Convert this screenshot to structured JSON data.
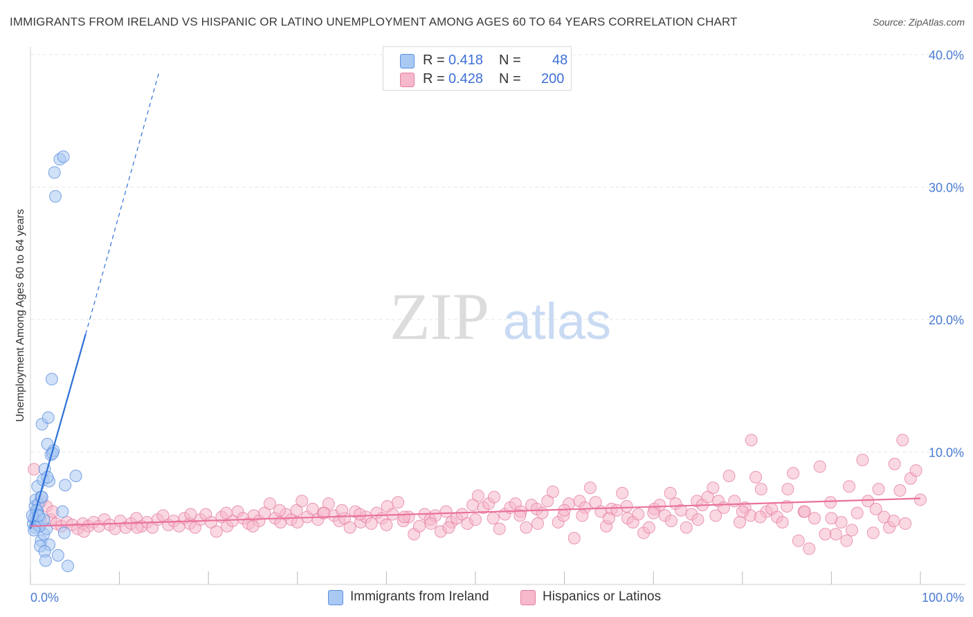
{
  "title": "IMMIGRANTS FROM IRELAND VS HISPANIC OR LATINO UNEMPLOYMENT AMONG AGES 60 TO 64 YEARS CORRELATION CHART",
  "source": "Source: ZipAtlas.com",
  "watermark": {
    "zip": "ZIP",
    "atlas": "atlas"
  },
  "colors": {
    "blue_fill": "#a9c8f2",
    "blue_stroke": "#5b8fe0",
    "blue_line": "#2c6fd6",
    "pink_fill": "#f6b8cb",
    "pink_stroke": "#e57fa3",
    "pink_line": "#e9719a",
    "tick_text": "#4a7bd4",
    "grid": "#e6e6e6"
  },
  "legend": {
    "rows": [
      {
        "r_label": "R =",
        "r_value": "0.418",
        "n_label": "N =",
        "n_value": "48",
        "series": "blue"
      },
      {
        "r_label": "R =",
        "r_value": "0.428",
        "n_label": "N =",
        "n_value": "200",
        "series": "pink"
      }
    ]
  },
  "chart_data": {
    "type": "scatter",
    "title": "IMMIGRANTS FROM IRELAND VS HISPANIC OR LATINO UNEMPLOYMENT AMONG AGES 60 TO 64 YEARS CORRELATION CHART",
    "xlabel": "",
    "ylabel": "Unemployment Among Ages 60 to 64 years",
    "xlim": [
      0,
      100
    ],
    "ylim": [
      0,
      40
    ],
    "x_tick_labels": [
      "0.0%",
      "100.0%"
    ],
    "y_ticks": [
      10,
      20,
      30,
      40
    ],
    "y_tick_labels": [
      "10.0%",
      "20.0%",
      "30.0%",
      "40.0%"
    ],
    "grid": true,
    "legend_position": "top-center",
    "series": [
      {
        "name": "Immigrants from Ireland",
        "color": "blue",
        "r": 0.418,
        "n": 48,
        "trend": {
          "x0": 0.0,
          "y0": 4.2,
          "x1": 6.2,
          "y1": 18.9,
          "dash_x1": 14.5,
          "dash_y1": 38.8
        },
        "points": [
          [
            0.3,
            4.6
          ],
          [
            0.4,
            5.0
          ],
          [
            0.5,
            4.3
          ],
          [
            0.6,
            5.3
          ],
          [
            0.7,
            4.8
          ],
          [
            0.8,
            5.5
          ],
          [
            0.9,
            4.5
          ],
          [
            1.0,
            5.1
          ],
          [
            0.5,
            5.9
          ],
          [
            0.6,
            6.4
          ],
          [
            0.8,
            7.4
          ],
          [
            0.9,
            6.1
          ],
          [
            1.2,
            6.6
          ],
          [
            1.4,
            7.9
          ],
          [
            1.6,
            8.7
          ],
          [
            1.3,
            12.1
          ],
          [
            2.0,
            12.6
          ],
          [
            1.9,
            10.6
          ],
          [
            2.3,
            9.8
          ],
          [
            2.6,
            10.1
          ],
          [
            2.4,
            15.5
          ],
          [
            2.8,
            29.3
          ],
          [
            2.7,
            31.1
          ],
          [
            3.3,
            32.1
          ],
          [
            3.7,
            32.3
          ],
          [
            1.2,
            3.3
          ],
          [
            1.5,
            3.8
          ],
          [
            1.8,
            4.2
          ],
          [
            2.1,
            3.0
          ],
          [
            1.1,
            2.9
          ],
          [
            1.6,
            2.5
          ],
          [
            3.1,
            2.2
          ],
          [
            1.7,
            1.8
          ],
          [
            4.2,
            1.4
          ],
          [
            3.8,
            3.9
          ],
          [
            3.6,
            5.5
          ],
          [
            3.9,
            7.5
          ],
          [
            5.1,
            8.2
          ],
          [
            2.1,
            7.8
          ],
          [
            1.3,
            6.6
          ],
          [
            0.7,
            5.6
          ],
          [
            1.0,
            4.4
          ],
          [
            1.5,
            4.9
          ],
          [
            0.2,
            5.2
          ],
          [
            0.4,
            4.1
          ],
          [
            1.9,
            8.1
          ],
          [
            2.5,
            9.9
          ],
          [
            0.9,
            5.2
          ]
        ]
      },
      {
        "name": "Hispanics or Latinos",
        "color": "pink",
        "r": 0.428,
        "n": 200,
        "trend": {
          "x0": 0.0,
          "y0": 4.4,
          "x1": 100.0,
          "y1": 6.5
        },
        "points": [
          [
            0.4,
            8.7
          ],
          [
            1.2,
            6.3
          ],
          [
            1.8,
            5.9
          ],
          [
            2.3,
            4.9
          ],
          [
            2.9,
            4.6
          ],
          [
            3.5,
            4.4
          ],
          [
            4.1,
            4.7
          ],
          [
            4.7,
            4.5
          ],
          [
            5.3,
            4.2
          ],
          [
            5.9,
            4.6
          ],
          [
            6.5,
            4.4
          ],
          [
            7.1,
            4.7
          ],
          [
            7.7,
            4.4
          ],
          [
            8.3,
            4.9
          ],
          [
            8.9,
            4.5
          ],
          [
            9.5,
            4.2
          ],
          [
            10.1,
            4.8
          ],
          [
            10.7,
            4.3
          ],
          [
            11.3,
            4.6
          ],
          [
            11.9,
            5.0
          ],
          [
            12.5,
            4.4
          ],
          [
            13.1,
            4.7
          ],
          [
            13.7,
            4.3
          ],
          [
            14.3,
            4.9
          ],
          [
            14.9,
            5.2
          ],
          [
            15.5,
            4.5
          ],
          [
            16.1,
            4.8
          ],
          [
            16.7,
            4.4
          ],
          [
            17.3,
            5.0
          ],
          [
            17.9,
            4.6
          ],
          [
            18.5,
            4.3
          ],
          [
            19.1,
            4.9
          ],
          [
            19.7,
            5.3
          ],
          [
            20.3,
            4.7
          ],
          [
            20.9,
            4.0
          ],
          [
            21.5,
            5.1
          ],
          [
            22.1,
            4.4
          ],
          [
            22.7,
            4.8
          ],
          [
            23.3,
            5.5
          ],
          [
            23.9,
            5.0
          ],
          [
            24.5,
            4.6
          ],
          [
            25.1,
            5.2
          ],
          [
            25.7,
            4.8
          ],
          [
            26.3,
            5.4
          ],
          [
            26.9,
            6.1
          ],
          [
            27.5,
            5.0
          ],
          [
            28.1,
            4.7
          ],
          [
            28.7,
            5.3
          ],
          [
            29.3,
            4.9
          ],
          [
            29.9,
            5.6
          ],
          [
            30.5,
            6.3
          ],
          [
            31.1,
            5.1
          ],
          [
            31.7,
            5.7
          ],
          [
            32.3,
            4.9
          ],
          [
            32.9,
            5.4
          ],
          [
            33.5,
            6.1
          ],
          [
            34.1,
            5.2
          ],
          [
            34.7,
            4.8
          ],
          [
            35.3,
            5.0
          ],
          [
            35.9,
            4.3
          ],
          [
            36.5,
            5.5
          ],
          [
            37.1,
            4.7
          ],
          [
            37.7,
            5.1
          ],
          [
            38.3,
            4.6
          ],
          [
            38.9,
            5.4
          ],
          [
            39.5,
            5.0
          ],
          [
            40.1,
            5.9
          ],
          [
            40.7,
            5.3
          ],
          [
            41.3,
            6.2
          ],
          [
            41.9,
            4.8
          ],
          [
            42.5,
            5.1
          ],
          [
            43.1,
            3.8
          ],
          [
            43.7,
            4.4
          ],
          [
            44.3,
            5.3
          ],
          [
            44.9,
            4.9
          ],
          [
            45.5,
            5.2
          ],
          [
            46.1,
            4.0
          ],
          [
            46.7,
            5.5
          ],
          [
            47.3,
            4.7
          ],
          [
            47.9,
            5.0
          ],
          [
            48.5,
            5.3
          ],
          [
            49.1,
            4.6
          ],
          [
            49.7,
            6.0
          ],
          [
            50.3,
            6.7
          ],
          [
            50.9,
            5.8
          ],
          [
            51.5,
            6.1
          ],
          [
            52.1,
            6.6
          ],
          [
            52.7,
            4.2
          ],
          [
            53.3,
            5.3
          ],
          [
            53.9,
            5.8
          ],
          [
            54.5,
            6.1
          ],
          [
            55.1,
            5.5
          ],
          [
            55.7,
            4.3
          ],
          [
            56.3,
            6.0
          ],
          [
            56.9,
            5.7
          ],
          [
            57.5,
            5.4
          ],
          [
            58.1,
            6.3
          ],
          [
            58.7,
            7.0
          ],
          [
            59.3,
            4.7
          ],
          [
            59.9,
            5.2
          ],
          [
            60.5,
            6.1
          ],
          [
            61.1,
            3.5
          ],
          [
            61.7,
            6.3
          ],
          [
            62.3,
            5.8
          ],
          [
            62.9,
            7.3
          ],
          [
            63.5,
            6.2
          ],
          [
            64.1,
            5.5
          ],
          [
            64.7,
            4.4
          ],
          [
            65.3,
            5.7
          ],
          [
            65.9,
            5.6
          ],
          [
            66.5,
            6.9
          ],
          [
            67.1,
            5.0
          ],
          [
            67.7,
            4.7
          ],
          [
            68.3,
            5.3
          ],
          [
            68.9,
            3.9
          ],
          [
            69.5,
            4.3
          ],
          [
            70.1,
            5.7
          ],
          [
            70.7,
            6.0
          ],
          [
            71.3,
            5.2
          ],
          [
            71.9,
            6.9
          ],
          [
            72.5,
            6.1
          ],
          [
            73.1,
            5.6
          ],
          [
            73.7,
            4.3
          ],
          [
            74.3,
            5.3
          ],
          [
            74.9,
            6.3
          ],
          [
            75.5,
            6.0
          ],
          [
            76.1,
            6.6
          ],
          [
            76.7,
            7.3
          ],
          [
            77.3,
            6.3
          ],
          [
            77.9,
            5.8
          ],
          [
            78.5,
            8.2
          ],
          [
            79.1,
            6.3
          ],
          [
            79.7,
            4.7
          ],
          [
            80.3,
            5.8
          ],
          [
            80.9,
            5.2
          ],
          [
            81.5,
            8.1
          ],
          [
            82.1,
            7.2
          ],
          [
            82.7,
            5.5
          ],
          [
            83.3,
            5.7
          ],
          [
            83.9,
            5.1
          ],
          [
            84.5,
            4.7
          ],
          [
            85.1,
            7.2
          ],
          [
            85.7,
            8.4
          ],
          [
            86.3,
            3.3
          ],
          [
            86.9,
            5.5
          ],
          [
            87.5,
            2.7
          ],
          [
            88.1,
            5.0
          ],
          [
            88.7,
            8.9
          ],
          [
            89.3,
            3.8
          ],
          [
            89.9,
            6.2
          ],
          [
            90.5,
            3.8
          ],
          [
            91.1,
            4.7
          ],
          [
            91.7,
            3.3
          ],
          [
            92.3,
            4.1
          ],
          [
            92.9,
            5.4
          ],
          [
            93.5,
            9.4
          ],
          [
            94.1,
            6.3
          ],
          [
            94.7,
            3.9
          ],
          [
            95.3,
            7.2
          ],
          [
            95.9,
            5.1
          ],
          [
            96.5,
            4.3
          ],
          [
            97.1,
            9.1
          ],
          [
            97.7,
            7.1
          ],
          [
            98.3,
            4.6
          ],
          [
            98.9,
            8.0
          ],
          [
            99.5,
            8.6
          ],
          [
            81.0,
            10.9
          ],
          [
            98.0,
            10.9
          ],
          [
            100.0,
            6.4
          ],
          [
            25.0,
            4.4
          ],
          [
            30.0,
            4.7
          ],
          [
            35.0,
            5.6
          ],
          [
            40.0,
            4.5
          ],
          [
            45.0,
            4.6
          ],
          [
            50.0,
            4.9
          ],
          [
            55.0,
            5.2
          ],
          [
            60.0,
            5.6
          ],
          [
            65.0,
            5.0
          ],
          [
            70.0,
            5.4
          ],
          [
            75.0,
            4.9
          ],
          [
            80.0,
            5.5
          ],
          [
            85.0,
            5.9
          ],
          [
            90.0,
            5.0
          ],
          [
            95.0,
            5.7
          ],
          [
            2.5,
            5.5
          ],
          [
            6.0,
            4.0
          ],
          [
            12.0,
            4.3
          ],
          [
            18.0,
            5.3
          ],
          [
            22.0,
            5.4
          ],
          [
            28.0,
            5.6
          ],
          [
            33.0,
            5.4
          ],
          [
            37.0,
            5.3
          ],
          [
            42.0,
            5.1
          ],
          [
            47.0,
            4.3
          ],
          [
            52.0,
            5.0
          ],
          [
            57.0,
            4.6
          ],
          [
            62.0,
            5.2
          ],
          [
            67.0,
            5.9
          ],
          [
            72.0,
            4.8
          ],
          [
            77.0,
            5.2
          ],
          [
            82.0,
            5.1
          ],
          [
            87.0,
            5.5
          ],
          [
            92.0,
            7.4
          ],
          [
            97.0,
            4.8
          ]
        ]
      }
    ]
  }
}
